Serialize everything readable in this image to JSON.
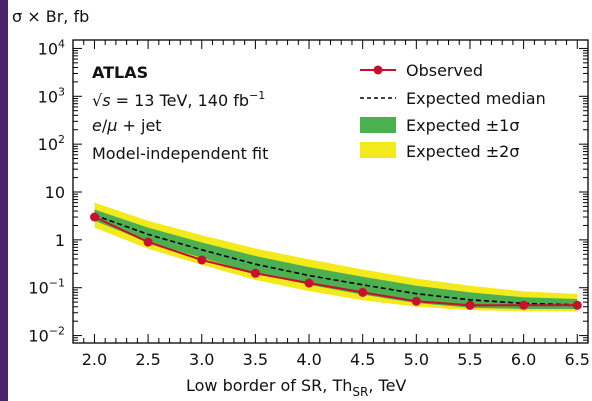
{
  "chart_data": {
    "type": "line",
    "ylabel_main": "σ × Br, fb",
    "xlabel_main": "Low border of SR, Th",
    "xlabel_sub": "SR",
    "xlabel_tail": ", TeV",
    "xlim": [
      1.8,
      6.6
    ],
    "ylim": [
      0.007,
      15000
    ],
    "yscale": "log",
    "x": [
      2.0,
      2.5,
      3.0,
      3.5,
      4.0,
      4.5,
      5.0,
      5.5,
      6.0,
      6.5
    ],
    "x_ticks": [
      2.0,
      2.5,
      3.0,
      3.5,
      4.0,
      4.5,
      5.0,
      5.5,
      6.0,
      6.5
    ],
    "x_tick_labels": [
      "2.0",
      "2.5",
      "3.0",
      "3.5",
      "4.0",
      "4.5",
      "5.0",
      "5.5",
      "6.0",
      "6.5"
    ],
    "y_tick_labels": [
      {
        "value": 10000,
        "base": "10",
        "exp": "4"
      },
      {
        "value": 1000,
        "base": "10",
        "exp": "3"
      },
      {
        "value": 100,
        "base": "10",
        "exp": "2"
      },
      {
        "value": 10,
        "base": "10",
        "exp": ""
      },
      {
        "value": 1,
        "base": "1",
        "exp": ""
      },
      {
        "value": 0.1,
        "base": "10",
        "exp": "−1"
      },
      {
        "value": 0.01,
        "base": "10",
        "exp": "−2"
      }
    ],
    "series": [
      {
        "name": "Observed",
        "color": "#c8102e",
        "values": [
          3.0,
          0.9,
          0.38,
          0.2,
          0.125,
          0.08,
          0.052,
          0.043,
          0.043,
          0.043
        ]
      },
      {
        "name": "Expected median",
        "color": "#000000",
        "values": [
          3.3,
          1.3,
          0.62,
          0.31,
          0.18,
          0.115,
          0.075,
          0.056,
          0.047,
          0.044
        ]
      },
      {
        "name": "Expected ±1σ",
        "color": "#4caf50",
        "lower": [
          2.5,
          0.9,
          0.42,
          0.2,
          0.115,
          0.072,
          0.048,
          0.038,
          0.036,
          0.036
        ],
        "upper": [
          4.3,
          1.8,
          0.88,
          0.46,
          0.27,
          0.17,
          0.11,
          0.08,
          0.063,
          0.058
        ]
      },
      {
        "name": "Expected ±2σ",
        "color": "#f4ea1b",
        "lower": [
          1.8,
          0.65,
          0.3,
          0.145,
          0.085,
          0.055,
          0.04,
          0.034,
          0.032,
          0.032
        ],
        "upper": [
          6.0,
          2.5,
          1.25,
          0.66,
          0.39,
          0.24,
          0.155,
          0.11,
          0.084,
          0.074
        ]
      }
    ],
    "legend_position": "top-right",
    "annotations": {
      "atlas": "ATLAS",
      "energy_sqrt": "√",
      "energy_s": "s",
      "energy_rest": " = 13 TeV, 140 fb",
      "energy_exp": "−1",
      "channel_e": "e",
      "channel_slash": "/",
      "channel_mu": "μ",
      "channel_rest": " + jet",
      "fit": "Model-independent fit"
    }
  }
}
